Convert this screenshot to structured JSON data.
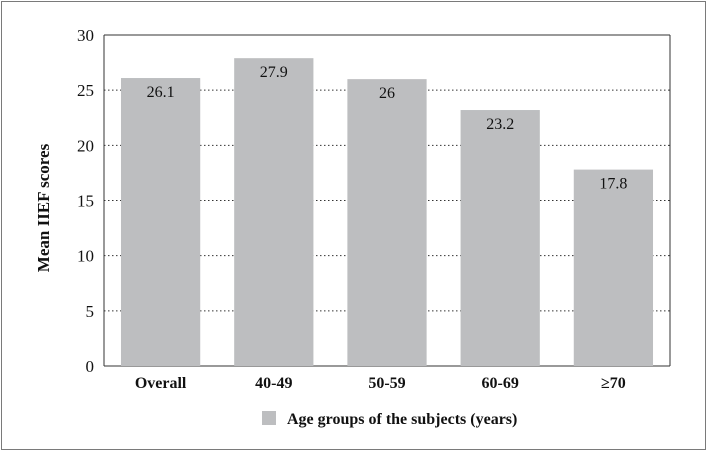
{
  "chart_data": {
    "type": "bar",
    "categories": [
      "Overall",
      "40-49",
      "50-59",
      "60-69",
      "≥70"
    ],
    "values": [
      26.1,
      27.9,
      26,
      23.2,
      17.8
    ],
    "data_labels": [
      "26.1",
      "27.9",
      "26",
      "23.2",
      "17.8"
    ],
    "ylabel": "Mean IIEF scores",
    "xlabel": "",
    "ylim": [
      0,
      30
    ],
    "yticks": [
      0,
      5,
      10,
      15,
      20,
      25,
      30
    ],
    "ytick_labels": [
      "0",
      "5",
      "10",
      "15",
      "20",
      "25",
      "30"
    ],
    "grid": "horizontal dotted",
    "legend": {
      "placement": "bottom",
      "entries": [
        {
          "label": "Age groups of the subjects (years)",
          "color": "#bdbec0"
        }
      ]
    },
    "bar_color": "#bdbec0"
  }
}
